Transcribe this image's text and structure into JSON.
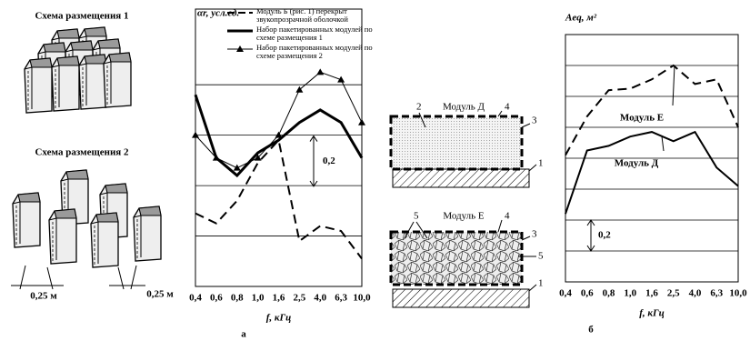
{
  "schemes": {
    "scheme1": "Схема размещения 1",
    "scheme2": "Схема размещения 2",
    "gap_left": "0,25 м",
    "gap_right": "0,25 м"
  },
  "diagram": {
    "top": {
      "module": "Модуль Д",
      "n2": "2",
      "n4": "4",
      "n3": "3",
      "n1": "1"
    },
    "bottom": {
      "module": "Модуль Е",
      "n5a": "5",
      "n4": "4",
      "n3": "3",
      "n5b": "5",
      "n1": "1"
    }
  },
  "chart_data": [
    {
      "type": "line",
      "ylabel": "αr, усл.ед.",
      "xlabel": "f, кГц",
      "caption": "а",
      "categories": [
        "0,4",
        "0,6",
        "0,8",
        "1,0",
        "1,6",
        "2,5",
        "4,0",
        "6,3",
        "10,0"
      ],
      "ylim": [
        0,
        1.1
      ],
      "yticks": [
        0.2,
        0.4,
        0.6,
        0.8
      ],
      "grid": true,
      "scale_bar": {
        "value": 0.2,
        "label": "0,2"
      },
      "series": [
        {
          "name": "Модуль Б (рис. 1) перекрыт звукопрозрачной оболочкой",
          "color": "#000",
          "style": "dashed",
          "width": 2,
          "values": [
            0.29,
            0.25,
            0.34,
            0.49,
            0.58,
            0.18,
            0.24,
            0.22,
            0.11
          ]
        },
        {
          "name": "Набор пакетированных модулей по схеме размещения 1",
          "color": "#000",
          "style": "solid",
          "width": 3,
          "values": [
            0.76,
            0.51,
            0.44,
            0.53,
            0.58,
            0.65,
            0.7,
            0.65,
            0.51
          ]
        },
        {
          "name": "Набор пакетированных модулей по схеме размещения 2",
          "color": "#000",
          "style": "solid",
          "width": 1,
          "marker": "triangle",
          "values": [
            0.6,
            0.51,
            0.47,
            0.51,
            0.6,
            0.78,
            0.85,
            0.82,
            0.65
          ]
        }
      ]
    },
    {
      "type": "line",
      "ylabel": "Aeq, м²",
      "xlabel": "f, кГц",
      "caption": "б",
      "categories": [
        "0,4",
        "0,6",
        "0,8",
        "1,0",
        "1,6",
        "2,5",
        "4,0",
        "6,3",
        "10,0"
      ],
      "ylim": [
        0,
        1.6
      ],
      "yticks": [
        0.2,
        0.4,
        0.6,
        0.8,
        1.0,
        1.2,
        1.4
      ],
      "grid": true,
      "scale_bar": {
        "value": 0.2,
        "label": "0,2"
      },
      "series": [
        {
          "name": "Модуль Е",
          "color": "#000",
          "style": "dashed",
          "width": 2,
          "values": [
            0.82,
            1.07,
            1.24,
            1.25,
            1.31,
            1.4,
            1.28,
            1.31,
            1.0
          ]
        },
        {
          "name": "Модуль Д",
          "color": "#000",
          "style": "solid",
          "width": 2,
          "values": [
            0.44,
            0.85,
            0.88,
            0.94,
            0.97,
            0.91,
            0.97,
            0.74,
            0.62
          ]
        }
      ]
    }
  ]
}
